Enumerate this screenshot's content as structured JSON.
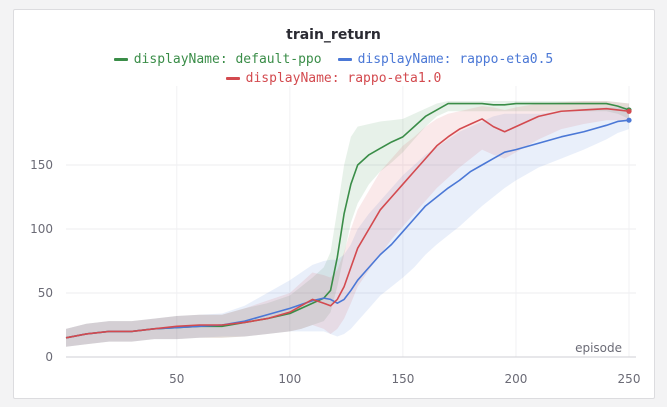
{
  "colors": {
    "default-ppo": "#3a8d48",
    "rappo-eta0.5": "#4b78d6",
    "rappo-eta1.0": "#d34a4f"
  },
  "chart_data": {
    "type": "line",
    "title": "train_return",
    "xlabel": "episode",
    "ylabel": "",
    "xlim": [
      1,
      250
    ],
    "ylim": [
      0,
      200
    ],
    "xticks": [
      50,
      100,
      150,
      200,
      250
    ],
    "yticks": [
      0,
      50,
      100,
      150
    ],
    "legend_placement": "top",
    "grid": true,
    "series": [
      {
        "name": "displayName: default-ppo",
        "color": "#3a8d48",
        "x": [
          1,
          10,
          20,
          30,
          40,
          50,
          60,
          70,
          80,
          90,
          100,
          105,
          110,
          115,
          118,
          121,
          124,
          127,
          130,
          135,
          140,
          145,
          150,
          155,
          160,
          165,
          170,
          175,
          180,
          185,
          190,
          195,
          200,
          210,
          220,
          230,
          240,
          245,
          250
        ],
        "y": [
          15,
          18,
          20,
          20,
          22,
          23,
          24,
          24,
          27,
          30,
          34,
          38,
          42,
          46,
          52,
          78,
          112,
          135,
          150,
          158,
          163,
          168,
          172,
          180,
          188,
          193,
          198,
          198,
          198,
          198,
          197,
          197,
          198,
          198,
          198,
          198,
          198,
          196,
          193
        ],
        "band_low": [
          8,
          10,
          12,
          12,
          14,
          14,
          15,
          15,
          16,
          18,
          20,
          22,
          25,
          28,
          35,
          55,
          80,
          105,
          120,
          135,
          145,
          152,
          160,
          170,
          180,
          188,
          192,
          192,
          192,
          192,
          192,
          192,
          192,
          192,
          192,
          192,
          192,
          190,
          186
        ],
        "band_high": [
          22,
          26,
          28,
          28,
          30,
          32,
          33,
          33,
          38,
          42,
          48,
          55,
          62,
          70,
          82,
          115,
          150,
          172,
          180,
          182,
          184,
          185,
          186,
          190,
          194,
          198,
          200,
          200,
          200,
          200,
          200,
          200,
          200,
          200,
          200,
          200,
          200,
          199,
          198
        ]
      },
      {
        "name": "displayName: rappo-eta0.5",
        "color": "#4b78d6",
        "x": [
          1,
          10,
          20,
          30,
          40,
          50,
          60,
          70,
          80,
          90,
          100,
          105,
          110,
          115,
          118,
          121,
          124,
          127,
          130,
          135,
          140,
          145,
          150,
          155,
          160,
          165,
          170,
          175,
          180,
          185,
          190,
          195,
          200,
          210,
          220,
          230,
          240,
          245,
          250
        ],
        "y": [
          15,
          18,
          20,
          20,
          22,
          23,
          24,
          25,
          28,
          33,
          38,
          41,
          44,
          46,
          45,
          42,
          45,
          52,
          60,
          70,
          80,
          88,
          98,
          108,
          118,
          125,
          132,
          138,
          145,
          150,
          155,
          160,
          162,
          167,
          172,
          176,
          181,
          184,
          185
        ],
        "band_low": [
          8,
          10,
          12,
          12,
          14,
          14,
          15,
          16,
          16,
          18,
          20,
          20,
          20,
          20,
          18,
          16,
          18,
          22,
          28,
          38,
          48,
          55,
          62,
          70,
          80,
          88,
          95,
          102,
          110,
          118,
          125,
          132,
          138,
          148,
          155,
          162,
          170,
          175,
          178
        ],
        "band_high": [
          22,
          26,
          28,
          28,
          30,
          32,
          33,
          34,
          40,
          50,
          60,
          66,
          72,
          75,
          76,
          76,
          80,
          88,
          100,
          112,
          122,
          132,
          142,
          150,
          158,
          164,
          170,
          176,
          180,
          184,
          188,
          190,
          190,
          190,
          192,
          194,
          195,
          195,
          195
        ]
      },
      {
        "name": "displayName: rappo-eta1.0",
        "color": "#d34a4f",
        "x": [
          1,
          10,
          20,
          30,
          40,
          50,
          60,
          70,
          80,
          90,
          100,
          105,
          110,
          115,
          118,
          121,
          124,
          127,
          130,
          135,
          140,
          145,
          150,
          155,
          160,
          165,
          170,
          175,
          180,
          185,
          190,
          195,
          200,
          210,
          220,
          230,
          240,
          245,
          250
        ],
        "y": [
          15,
          18,
          20,
          20,
          22,
          24,
          25,
          25,
          27,
          30,
          35,
          40,
          45,
          42,
          40,
          45,
          55,
          70,
          85,
          100,
          115,
          125,
          135,
          145,
          155,
          165,
          172,
          178,
          182,
          186,
          180,
          176,
          180,
          188,
          192,
          193,
          194,
          193,
          192
        ],
        "band_low": [
          8,
          10,
          12,
          12,
          14,
          14,
          15,
          15,
          16,
          18,
          20,
          22,
          25,
          22,
          18,
          22,
          30,
          42,
          55,
          68,
          80,
          92,
          102,
          112,
          122,
          132,
          140,
          148,
          155,
          162,
          158,
          155,
          160,
          170,
          178,
          182,
          185,
          185,
          184
        ],
        "band_high": [
          22,
          26,
          28,
          28,
          30,
          32,
          33,
          33,
          38,
          44,
          50,
          58,
          66,
          64,
          62,
          68,
          82,
          100,
          115,
          130,
          145,
          155,
          165,
          172,
          180,
          186,
          190,
          192,
          194,
          196,
          195,
          193,
          195,
          198,
          199,
          200,
          200,
          199,
          198
        ]
      }
    ]
  }
}
